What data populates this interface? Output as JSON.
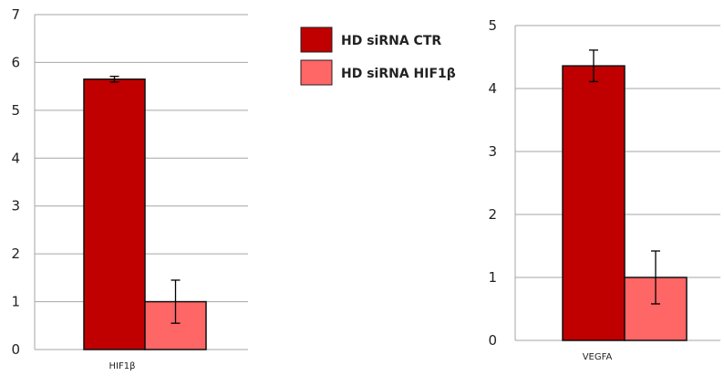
{
  "legend": [
    {
      "label": "HD siRNA  CTR",
      "color": "#c00000"
    },
    {
      "label": "HD siRNA  HIF1β",
      "color": "#ff6666"
    }
  ],
  "chart_data": [
    {
      "type": "bar",
      "categories": [
        "HIF1β"
      ],
      "series": [
        {
          "name": "HD siRNA  CTR",
          "values": [
            5.65
          ],
          "error": [
            0.06
          ],
          "color": "#c00000"
        },
        {
          "name": "HD siRNA  HIF1β",
          "values": [
            1.0
          ],
          "error": [
            0.45
          ],
          "color": "#ff6666"
        }
      ],
      "ylim": [
        0,
        7
      ],
      "yticks": [
        "0",
        "1",
        "2",
        "3",
        "4",
        "5",
        "6",
        "7"
      ],
      "grid": true
    },
    {
      "type": "bar",
      "categories": [
        "VEGFA"
      ],
      "series": [
        {
          "name": "HD siRNA  CTR",
          "values": [
            4.36
          ],
          "error": [
            0.25
          ],
          "color": "#c00000"
        },
        {
          "name": "HD siRNA  HIF1β",
          "values": [
            1.0
          ],
          "error": [
            0.42
          ],
          "color": "#ff6666"
        }
      ],
      "ylim": [
        0,
        5
      ],
      "yticks": [
        "0",
        "1",
        "2",
        "3",
        "4",
        "5"
      ],
      "grid": true
    }
  ]
}
